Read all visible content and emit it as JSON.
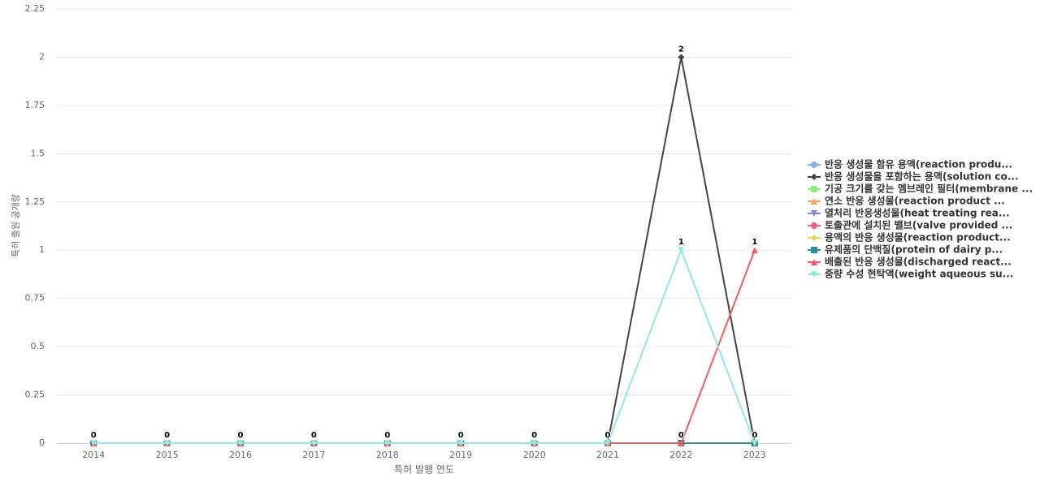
{
  "chart_data": {
    "type": "line",
    "y_label": "특허 출원 공개량",
    "x_label": "특허 발행 연도",
    "categories": [
      "2014",
      "2015",
      "2016",
      "2017",
      "2018",
      "2019",
      "2020",
      "2021",
      "2022",
      "2023"
    ],
    "ylim": [
      0,
      2.25
    ],
    "yticks": [
      0,
      0.25,
      0.5,
      0.75,
      1,
      1.25,
      1.5,
      1.75,
      2,
      2.25
    ],
    "grid": true,
    "legend": "right",
    "series": [
      {
        "name": "반응 생성물 함유 용액(reaction produ...",
        "color": "#7cb5ec",
        "values": [
          0,
          0,
          0,
          0,
          0,
          0,
          0,
          0,
          0,
          0
        ]
      },
      {
        "name": "반응 생성물을 포함하는 용액(solution co...",
        "color": "#434348",
        "values": [
          0,
          0,
          0,
          0,
          0,
          0,
          0,
          0,
          2,
          0
        ]
      },
      {
        "name": "기공 크기를 갖는 멤브레인 필터(membrane ...",
        "color": "#90ed7d",
        "values": [
          0,
          0,
          0,
          0,
          0,
          0,
          0,
          0,
          0,
          0
        ]
      },
      {
        "name": "연소 반응 생성물(reaction product ...",
        "color": "#f7a35c",
        "values": [
          0,
          0,
          0,
          0,
          0,
          0,
          0,
          0,
          0,
          0
        ]
      },
      {
        "name": "열처리 반응생성물(heat treating rea...",
        "color": "#8085e9",
        "values": [
          0,
          0,
          0,
          0,
          0,
          0,
          0,
          0,
          0,
          0
        ]
      },
      {
        "name": "토출관에 설치된 밸브(valve provided ...",
        "color": "#f15c80",
        "values": [
          0,
          0,
          0,
          0,
          0,
          0,
          0,
          0,
          0,
          0
        ]
      },
      {
        "name": "용액의 반응 생성물(reaction product...",
        "color": "#e4d354",
        "values": [
          0,
          0,
          0,
          0,
          0,
          0,
          0,
          0,
          0,
          0
        ]
      },
      {
        "name": "유제품의 단백질(protein of dairy p...",
        "color": "#2b908f",
        "values": [
          0,
          0,
          0,
          0,
          0,
          0,
          0,
          0,
          0,
          0
        ]
      },
      {
        "name": "배출된 반응 생성물(discharged react...",
        "color": "#f45b5b",
        "values": [
          0,
          0,
          0,
          0,
          0,
          0,
          0,
          0,
          0,
          1
        ]
      },
      {
        "name": "중량 수성 현탁액(weight aqueous su...",
        "color": "#91e8e1",
        "values": [
          0,
          0,
          0,
          0,
          0,
          0,
          0,
          0,
          1,
          0
        ]
      }
    ]
  }
}
